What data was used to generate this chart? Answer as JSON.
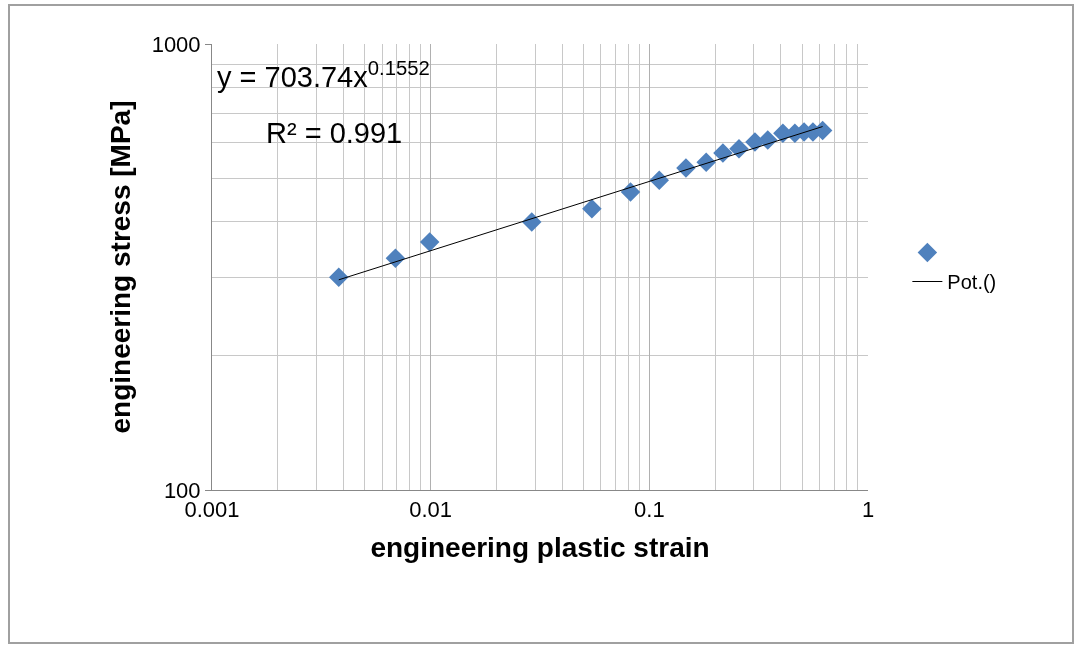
{
  "chart_data": {
    "type": "scatter",
    "xlabel": "engineering plastic strain",
    "ylabel": "engineering stress [MPa]",
    "annotations": [
      "y = 703.74x$^{0.1552}$",
      "R² = 0.991"
    ],
    "series": [
      {
        "type": "scatter",
        "color": "#4f81bd",
        "marker": "diamond",
        "x": [
          0.0038,
          0.0069,
          0.0099,
          0.029,
          0.0546,
          0.082,
          0.111,
          0.147,
          0.182,
          0.217,
          0.257,
          0.304,
          0.348,
          0.408,
          0.463,
          0.51,
          0.56,
          0.62
        ],
        "values": [
          300,
          331,
          360,
          399,
          427,
          466,
          495,
          527,
          543,
          570,
          582,
          603,
          609,
          631,
          631,
          635,
          635,
          640
        ]
      },
      {
        "type": "line",
        "name": "Pot.()",
        "color": "#000000",
        "marker": "none",
        "line_style": "solid",
        "x": [
          0.0038,
          0.62
        ],
        "values": [
          296,
          653
        ]
      }
    ],
    "log": "xy",
    "xlim": [
      0.001,
      1
    ],
    "ylim": [
      100,
      1000
    ],
    "xticks": [
      0.001,
      0.01,
      0.1,
      1
    ],
    "yticks": [
      100,
      1000
    ],
    "grid": true,
    "legend": "right"
  }
}
